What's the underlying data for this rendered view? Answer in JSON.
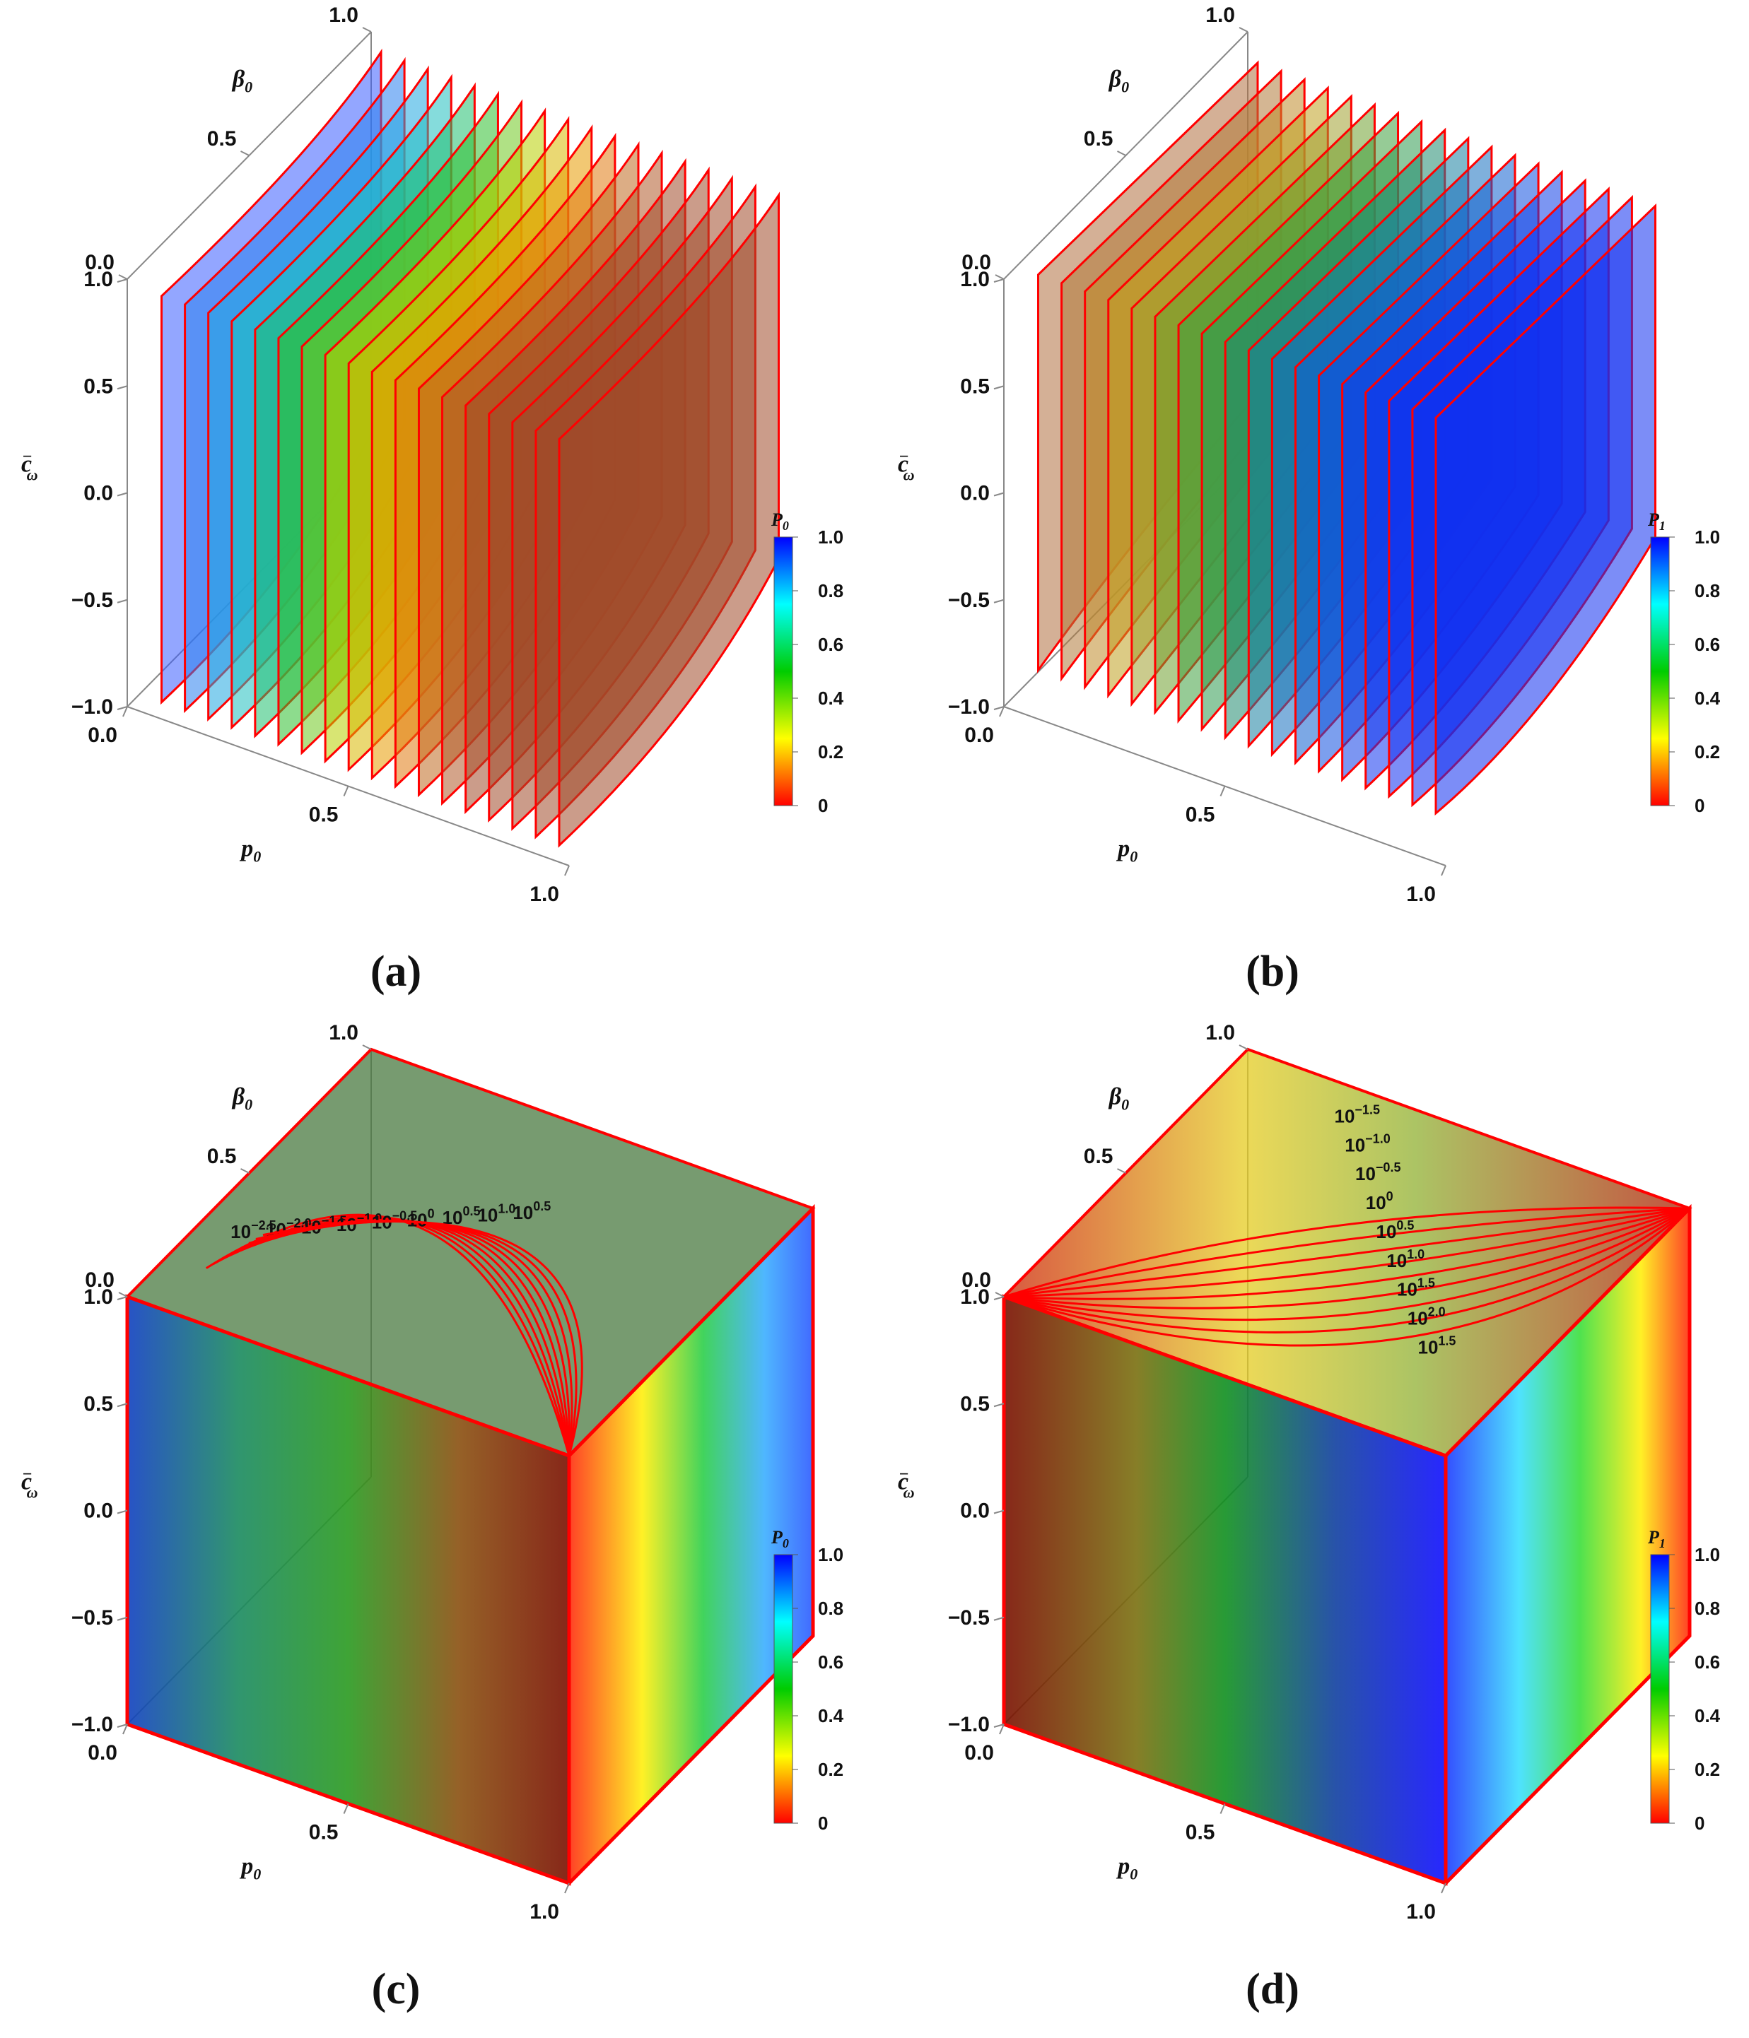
{
  "chart_data": [
    {
      "type": "surface3d",
      "panel_label": "(a)",
      "title": "",
      "axes": {
        "x": {
          "label": "p",
          "label_sub": "0",
          "ticks": [
            "0.0",
            "0.5",
            "1.0"
          ],
          "range": [
            0,
            1
          ]
        },
        "y": {
          "label": "β",
          "label_sub": "0",
          "ticks": [
            "0.0",
            "0.5",
            "1.0"
          ],
          "range": [
            0,
            1
          ]
        },
        "z": {
          "label": "c",
          "label_sub": "ω",
          "label_sup": "−",
          "ticks": [
            "1.0",
            "0.5",
            "0.0",
            "−0.5",
            "−1.0"
          ],
          "range": [
            -1,
            1
          ]
        }
      },
      "colorbar": {
        "label": "P",
        "label_sub": "0",
        "ticks": [
          "1.0",
          "0.8",
          "0.6",
          "0.4",
          "0.2",
          "0"
        ],
        "range": [
          0,
          1
        ],
        "colors": [
          "#0000ff",
          "#00ffff",
          "#00cc00",
          "#ffff00",
          "#ff0000"
        ]
      },
      "surface": "slices",
      "slice_count": 18,
      "edge_color": "#ff0000"
    },
    {
      "type": "surface3d",
      "panel_label": "(b)",
      "title": "",
      "axes": {
        "x": {
          "label": "p",
          "label_sub": "0",
          "ticks": [
            "0.0",
            "0.5",
            "1.0"
          ],
          "range": [
            0,
            1
          ]
        },
        "y": {
          "label": "β",
          "label_sub": "0",
          "ticks": [
            "0.0",
            "0.5",
            "1.0"
          ],
          "range": [
            0,
            1
          ]
        },
        "z": {
          "label": "c",
          "label_sub": "ω",
          "label_sup": "−",
          "ticks": [
            "1.0",
            "0.5",
            "0.0",
            "−0.5",
            "−1.0"
          ],
          "range": [
            -1,
            1
          ]
        }
      },
      "colorbar": {
        "label": "P",
        "label_sub": "1",
        "ticks": [
          "1.0",
          "0.8",
          "0.6",
          "0.4",
          "0.2",
          "0"
        ],
        "range": [
          0,
          1
        ],
        "colors": [
          "#0000ff",
          "#00ffff",
          "#00cc00",
          "#ffff00",
          "#ff0000"
        ]
      },
      "surface": "slices",
      "slice_count": 18,
      "edge_color": "#ff0000"
    },
    {
      "type": "surface3d",
      "panel_label": "(c)",
      "title": "",
      "axes": {
        "x": {
          "label": "p",
          "label_sub": "0",
          "ticks": [
            "0.0",
            "0.5",
            "1.0"
          ],
          "range": [
            0,
            1
          ]
        },
        "y": {
          "label": "β",
          "label_sub": "0",
          "ticks": [
            "0.0",
            "0.5",
            "1.0"
          ],
          "range": [
            0,
            1
          ]
        },
        "z": {
          "label": "c",
          "label_sub": "ω",
          "label_sup": "−",
          "ticks": [
            "1.0",
            "0.5",
            "0.0",
            "−0.5",
            "−1.0"
          ],
          "range": [
            -1,
            1
          ]
        }
      },
      "colorbar": {
        "label": "P",
        "label_sub": "0",
        "ticks": [
          "1.0",
          "0.8",
          "0.6",
          "0.4",
          "0.2",
          "0"
        ],
        "range": [
          0,
          1
        ],
        "colors": [
          "#0000ff",
          "#00ffff",
          "#00cc00",
          "#ffff00",
          "#ff0000"
        ]
      },
      "surface": "contours",
      "contour_levels": [
        {
          "base": "10",
          "exp": "−2.5"
        },
        {
          "base": "10",
          "exp": "−2.0"
        },
        {
          "base": "10",
          "exp": "−1.5"
        },
        {
          "base": "10",
          "exp": "−1.0"
        },
        {
          "base": "10",
          "exp": "−0.5"
        },
        {
          "base": "10",
          "exp": "0"
        },
        {
          "base": "10",
          "exp": "0.5"
        },
        {
          "base": "10",
          "exp": "1.0"
        },
        {
          "base": "10",
          "exp": "0.5"
        }
      ],
      "edge_color": "#ff0000"
    },
    {
      "type": "surface3d",
      "panel_label": "(d)",
      "title": "",
      "axes": {
        "x": {
          "label": "p",
          "label_sub": "0",
          "ticks": [
            "0.0",
            "0.5",
            "1.0"
          ],
          "range": [
            0,
            1
          ]
        },
        "y": {
          "label": "β",
          "label_sub": "0",
          "ticks": [
            "0.0",
            "0.5",
            "1.0"
          ],
          "range": [
            0,
            1
          ]
        },
        "z": {
          "label": "c",
          "label_sub": "ω",
          "label_sup": "−",
          "ticks": [
            "1.0",
            "0.5",
            "0.0",
            "−0.5",
            "−1.0"
          ],
          "range": [
            -1,
            1
          ]
        }
      },
      "colorbar": {
        "label": "P",
        "label_sub": "1",
        "ticks": [
          "1.0",
          "0.8",
          "0.6",
          "0.4",
          "0.2",
          "0"
        ],
        "range": [
          0,
          1
        ],
        "colors": [
          "#0000ff",
          "#00ffff",
          "#00cc00",
          "#ffff00",
          "#ff0000"
        ]
      },
      "surface": "contours",
      "contour_levels": [
        {
          "base": "10",
          "exp": "−1.5"
        },
        {
          "base": "10",
          "exp": "−1.0"
        },
        {
          "base": "10",
          "exp": "−0.5"
        },
        {
          "base": "10",
          "exp": "0"
        },
        {
          "base": "10",
          "exp": "0.5"
        },
        {
          "base": "10",
          "exp": "1.0"
        },
        {
          "base": "10",
          "exp": "1.5"
        },
        {
          "base": "10",
          "exp": "2.0"
        },
        {
          "base": "10",
          "exp": "1.5"
        }
      ],
      "edge_color": "#ff0000"
    }
  ]
}
